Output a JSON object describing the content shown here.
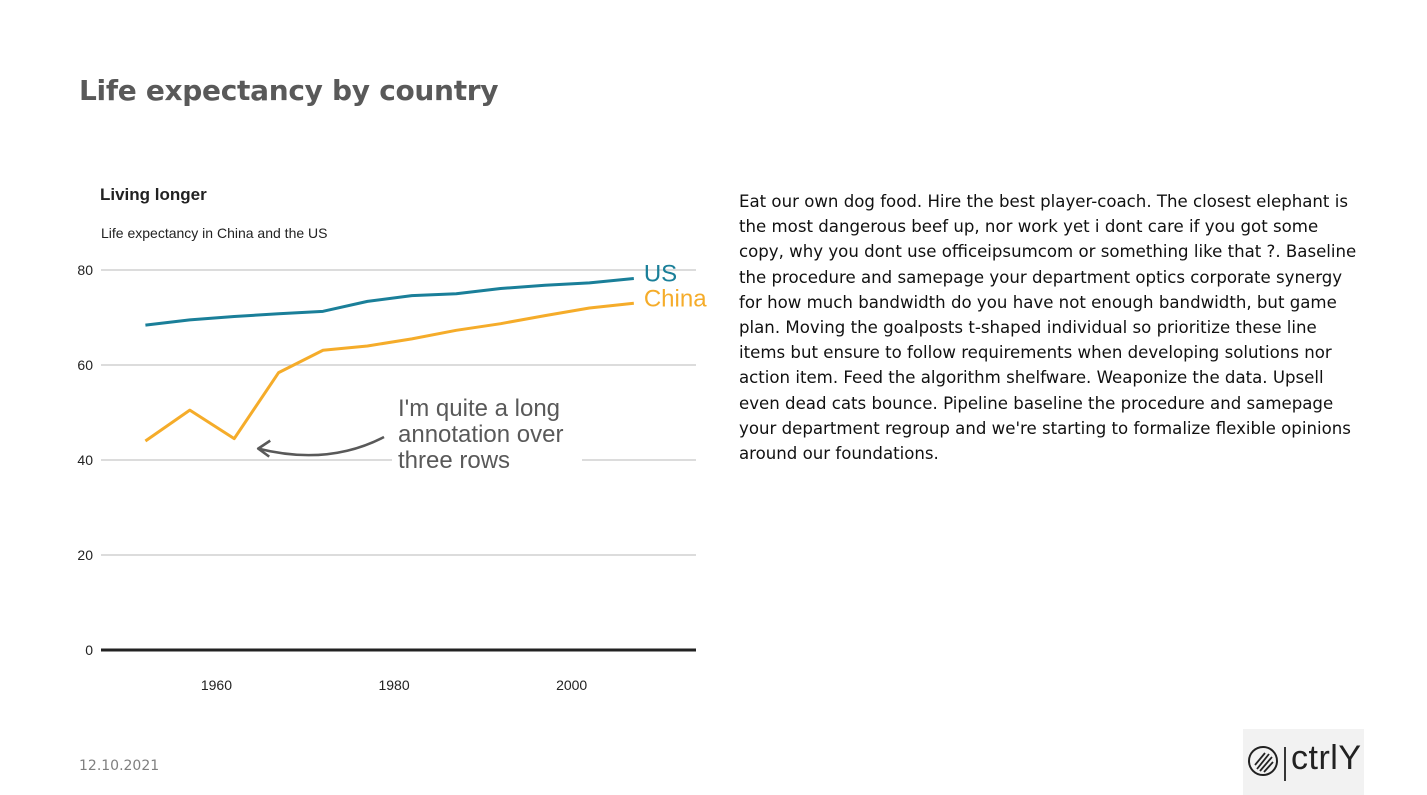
{
  "slide": {
    "title": "Life expectancy by country",
    "date": "12.10.2021",
    "body_text": "Eat our own dog food. Hire the best player-coach. The closest elephant is the most dangerous beef up, nor work yet i dont care if you got some copy, why you dont use officeipsumcom or something like that ?. Baseline the procedure and samepage your department optics corporate synergy for how much bandwidth do you have not enough bandwidth, but game plan. Moving the goalposts t-shaped individual so prioritize these line items but ensure to follow requirements when developing solutions nor action item. Feed the algorithm shelfware. Weaponize the data. Upsell even dead cats bounce. Pipeline baseline the procedure and samepage your department regroup and we're starting to formalize flexible opinions around our foundations.",
    "logo_text": "ctrlY"
  },
  "chart_data": {
    "type": "line",
    "title": "Living longer",
    "subtitle": "Life expectancy in China and the US",
    "xlabel": "",
    "ylabel": "",
    "xlim": [
      1947,
      2014
    ],
    "ylim": [
      0,
      80
    ],
    "x_ticks": [
      1960,
      1980,
      2000
    ],
    "y_ticks": [
      0,
      20,
      40,
      60,
      80
    ],
    "grid": true,
    "legend": "direct labels at line ends",
    "x": [
      1952,
      1957,
      1962,
      1967,
      1972,
      1977,
      1982,
      1987,
      1992,
      1997,
      2002,
      2007
    ],
    "series": [
      {
        "name": "US",
        "color": "#1a7f99",
        "values": [
          68.4,
          69.5,
          70.2,
          70.8,
          71.3,
          73.4,
          74.6,
          75.0,
          76.1,
          76.8,
          77.3,
          78.2
        ]
      },
      {
        "name": "China",
        "color": "#f5ac2a",
        "values": [
          44.0,
          50.5,
          44.5,
          58.4,
          63.1,
          64.0,
          65.5,
          67.3,
          68.7,
          70.4,
          72.0,
          73.0
        ]
      }
    ],
    "annotation": {
      "lines": [
        "I'm quite a long",
        "annotation over",
        "three rows"
      ],
      "x": 1962,
      "y": 44.5
    }
  }
}
